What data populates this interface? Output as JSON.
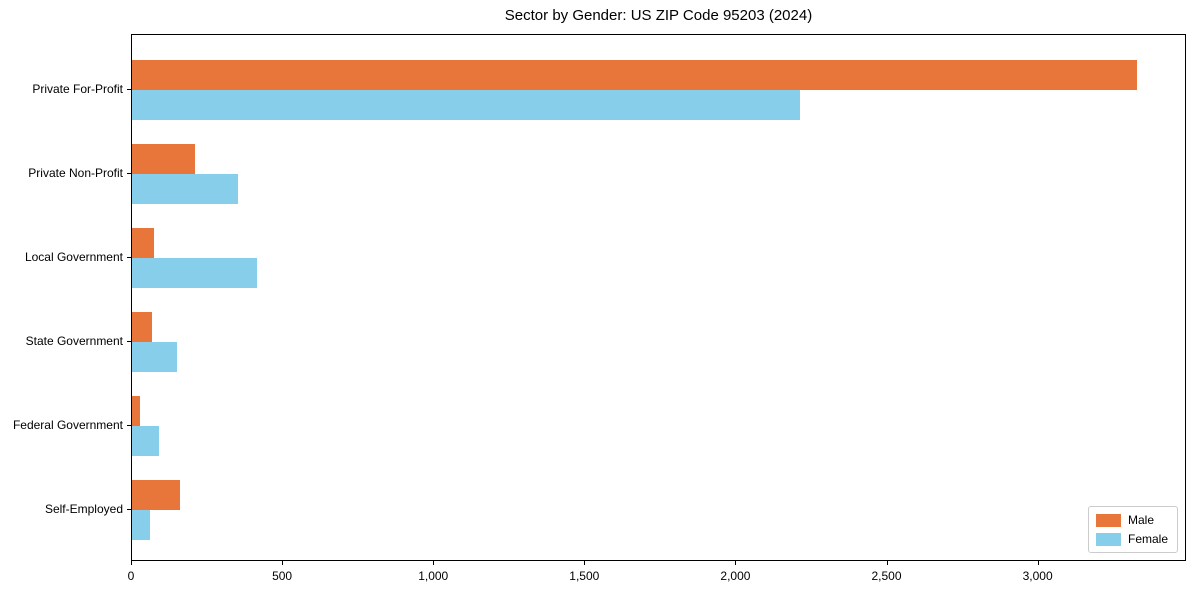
{
  "figure": {
    "background": "#ffffff"
  },
  "chart_data": {
    "type": "bar",
    "orientation": "horizontal",
    "title": "Sector by Gender: US ZIP Code 95203 (2024)",
    "categories": [
      "Private For-Profit",
      "Private Non-Profit",
      "Local Government",
      "State Government",
      "Federal Government",
      "Self-Employed"
    ],
    "series": [
      {
        "name": "Male",
        "color": "#e8763b",
        "values": [
          3325,
          210,
          73,
          67,
          26,
          158
        ]
      },
      {
        "name": "Female",
        "color": "#87ceeb",
        "values": [
          2210,
          350,
          414,
          149,
          88,
          61
        ]
      }
    ],
    "xlabel": "",
    "ylabel": "",
    "xlim": [
      0,
      3491
    ],
    "xticks": [
      0,
      500,
      1000,
      1500,
      2000,
      2500,
      3000
    ],
    "xtick_labels": [
      "0",
      "500",
      "1,000",
      "1,500",
      "2,000",
      "2,500",
      "3,000"
    ],
    "grid": false,
    "legend": {
      "position": "lower right",
      "entries": [
        "Male",
        "Female"
      ]
    }
  }
}
